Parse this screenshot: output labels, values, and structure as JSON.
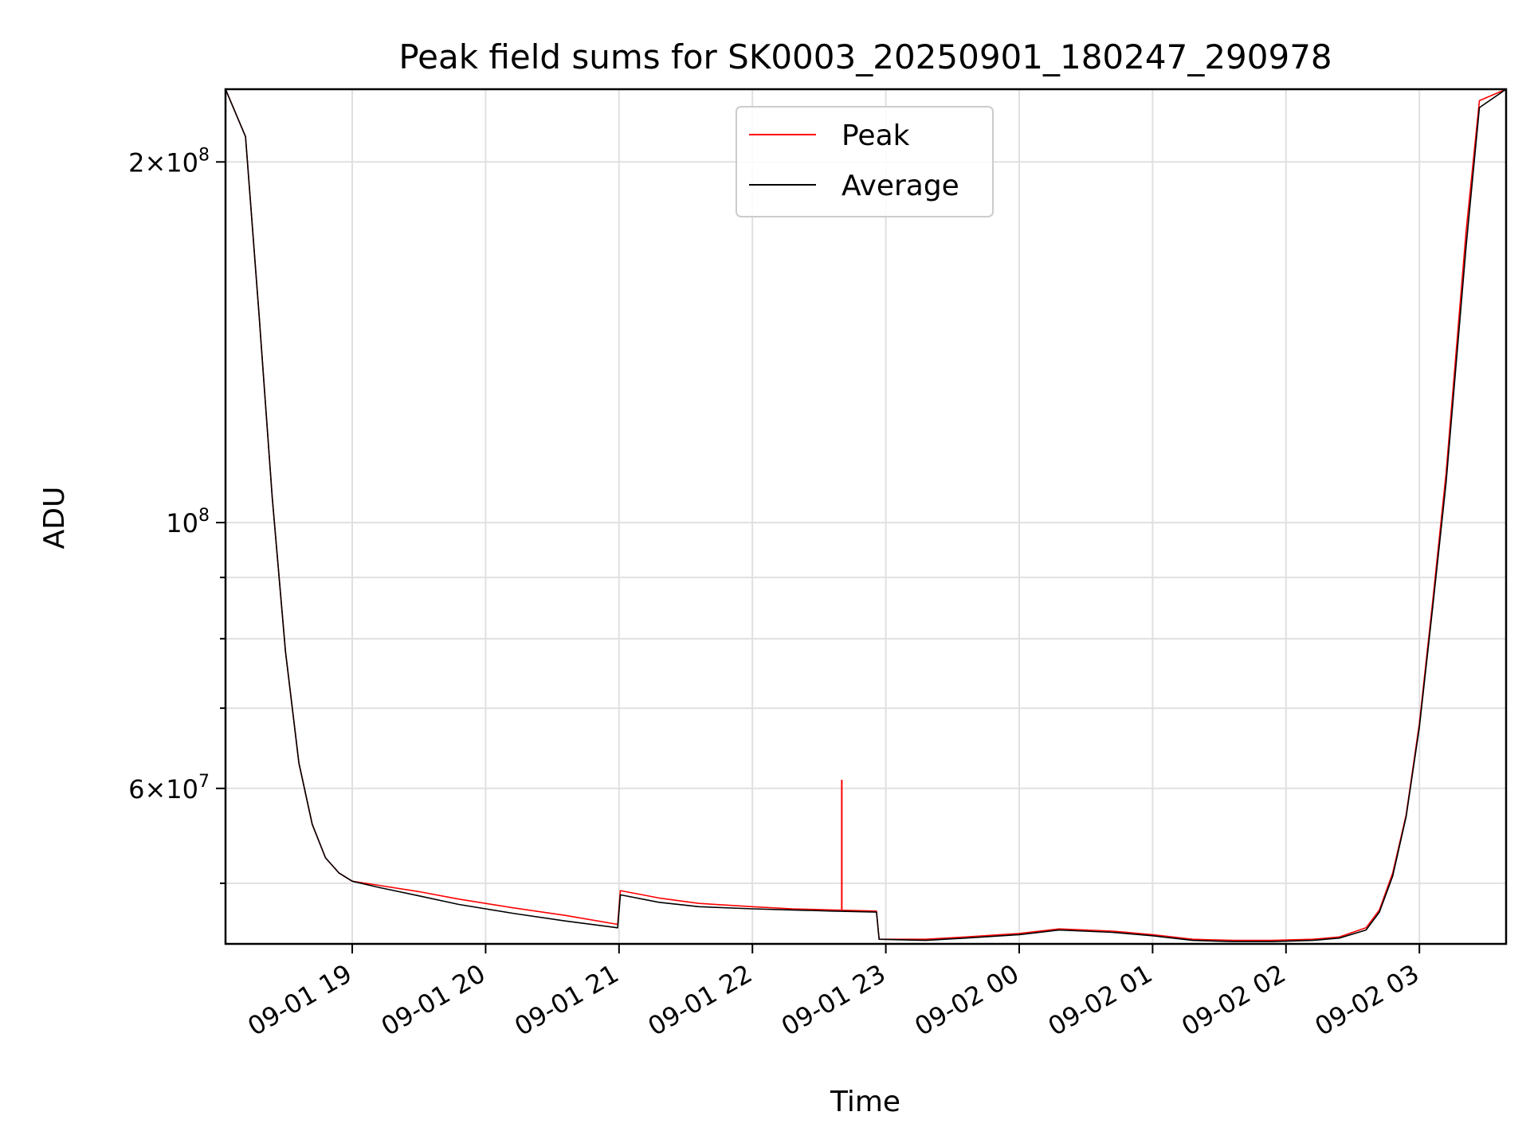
{
  "chart_data": {
    "type": "line",
    "title": "Peak field sums for SK0003_20250901_180247_290978",
    "xlabel": "Time",
    "ylabel": "ADU",
    "yscale": "log",
    "grid": true,
    "legend_position": "top-center",
    "x_unit": "hours since 2025-09-01 18:00",
    "xlim": [
      18.05,
      27.65
    ],
    "ylim": [
      44500000,
      230000000
    ],
    "x_ticks": [
      {
        "value": 19,
        "label": "09-01 19"
      },
      {
        "value": 20,
        "label": "09-01 20"
      },
      {
        "value": 21,
        "label": "09-01 21"
      },
      {
        "value": 22,
        "label": "09-01 22"
      },
      {
        "value": 23,
        "label": "09-01 23"
      },
      {
        "value": 24,
        "label": "09-02 00"
      },
      {
        "value": 25,
        "label": "09-02 01"
      },
      {
        "value": 26,
        "label": "09-02 02"
      },
      {
        "value": 27,
        "label": "09-02 03"
      }
    ],
    "y_ticks": [
      {
        "value": 200000000,
        "mantissa": "2",
        "exponent": "8"
      },
      {
        "value": 100000000,
        "mantissa": "",
        "exponent": "8"
      },
      {
        "value": 60000000,
        "mantissa": "6",
        "exponent": "7"
      }
    ],
    "y_minor_ticks": [
      50000000,
      70000000,
      80000000,
      90000000
    ],
    "series": [
      {
        "name": "Peak",
        "color": "#ff0000",
        "x": [
          18.05,
          18.2,
          18.3,
          18.4,
          18.5,
          18.6,
          18.7,
          18.8,
          18.9,
          19.0,
          19.2,
          19.5,
          19.8,
          20.2,
          20.6,
          20.99,
          21.01,
          21.3,
          21.6,
          22.0,
          22.3,
          22.6,
          22.93,
          22.95,
          23.3,
          23.6,
          24.0,
          24.3,
          24.7,
          25.0,
          25.3,
          25.6,
          25.9,
          26.2,
          26.4,
          26.6,
          26.7,
          26.8,
          26.9,
          27.0,
          27.1,
          27.2,
          27.35,
          27.45,
          27.65
        ],
        "y": [
          230000000,
          210000000,
          150000000,
          105000000,
          78000000,
          63000000,
          56000000,
          52500000,
          51000000,
          50200000,
          49800000,
          49200000,
          48500000,
          47700000,
          47000000,
          46200000,
          49300000,
          48600000,
          48100000,
          47800000,
          47600000,
          47500000,
          47400000,
          44900000,
          44900000,
          45100000,
          45400000,
          45800000,
          45600000,
          45300000,
          44900000,
          44800000,
          44800000,
          44900000,
          45100000,
          45900000,
          47500000,
          51000000,
          57000000,
          68000000,
          86000000,
          110000000,
          175000000,
          225000000,
          230000000
        ]
      },
      {
        "name": "Average",
        "color": "#000000",
        "x": [
          18.05,
          18.2,
          18.3,
          18.4,
          18.5,
          18.6,
          18.7,
          18.8,
          18.9,
          19.0,
          19.2,
          19.5,
          19.8,
          20.2,
          20.6,
          20.99,
          21.01,
          21.3,
          21.6,
          22.0,
          22.3,
          22.6,
          22.93,
          22.95,
          23.3,
          23.6,
          24.0,
          24.3,
          24.7,
          25.0,
          25.3,
          25.6,
          25.9,
          26.2,
          26.4,
          26.6,
          26.7,
          26.8,
          26.9,
          27.0,
          27.1,
          27.2,
          27.35,
          27.45,
          27.65
        ],
        "y": [
          230000000,
          210000000,
          150000000,
          105000000,
          78000000,
          63000000,
          56000000,
          52500000,
          51000000,
          50200000,
          49600000,
          48800000,
          48000000,
          47200000,
          46500000,
          45900000,
          48900000,
          48200000,
          47800000,
          47600000,
          47500000,
          47400000,
          47300000,
          44900000,
          44800000,
          45000000,
          45300000,
          45700000,
          45500000,
          45200000,
          44800000,
          44700000,
          44700000,
          44800000,
          45000000,
          45700000,
          47300000,
          50700000,
          56800000,
          67500000,
          85000000,
          108000000,
          170000000,
          222000000,
          230000000
        ]
      }
    ],
    "annotations": [
      {
        "x": 22.67,
        "y": 61000000,
        "series": "Peak",
        "note": "spike"
      }
    ]
  }
}
